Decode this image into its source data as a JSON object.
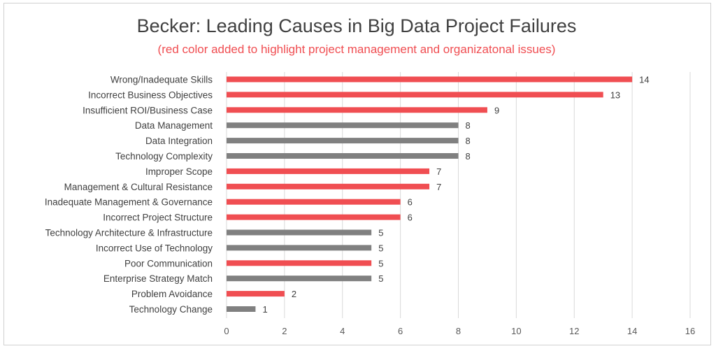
{
  "chart_data": {
    "type": "bar",
    "orientation": "horizontal",
    "title": "Becker: Leading Causes in Big Data Project Failures",
    "subtitle": "(red color added to highlight project management and organizatonal issues)",
    "categories": [
      "Wrong/Inadequate Skills",
      "Incorrect Business Objectives",
      "Insufficient ROI/Business Case",
      "Data Management",
      "Data Integration",
      "Technology Complexity",
      "Improper Scope",
      "Management & Cultural Resistance",
      "Inadequate Management & Governance",
      "Incorrect Project Structure",
      "Technology Architecture & Infrastructure",
      "Incorrect Use of Technology",
      "Poor Communication",
      "Enterprise Strategy Match",
      "Problem Avoidance",
      "Technology Change"
    ],
    "values": [
      14,
      13,
      9,
      8,
      8,
      8,
      7,
      7,
      6,
      6,
      5,
      5,
      5,
      5,
      2,
      1
    ],
    "highlighted": [
      true,
      true,
      true,
      false,
      false,
      false,
      true,
      true,
      true,
      true,
      false,
      false,
      true,
      false,
      true,
      false
    ],
    "xlim": [
      0,
      16
    ],
    "xticks": [
      "0",
      "2",
      "4",
      "6",
      "8",
      "10",
      "12",
      "14",
      "16"
    ],
    "grid": "vertical",
    "data_labels": true,
    "colors": {
      "highlight": "#f04e52",
      "default": "#808080",
      "grid": "#d9d9d9"
    }
  }
}
